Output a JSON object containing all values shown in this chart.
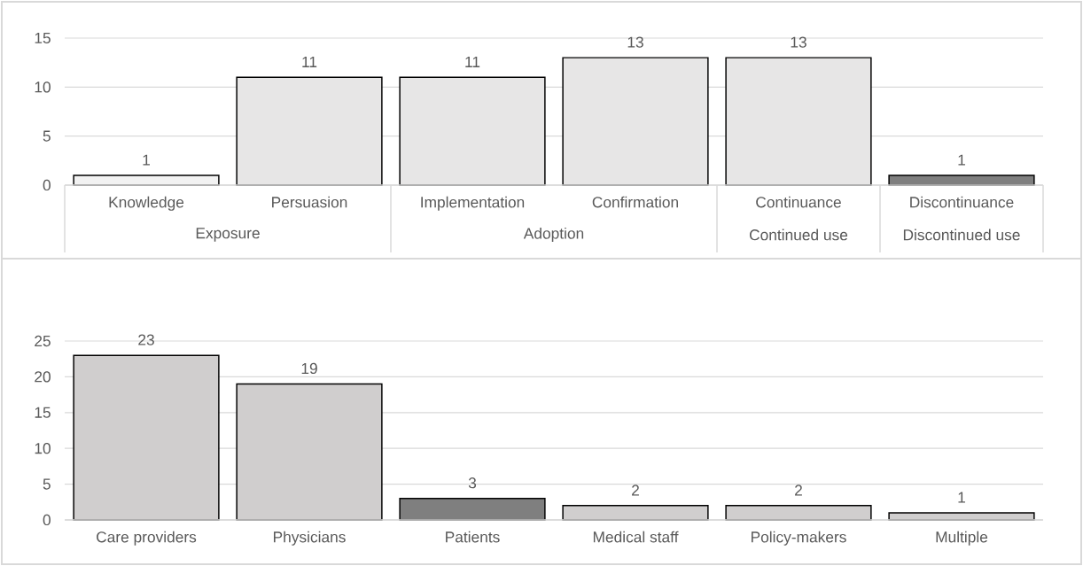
{
  "chart_data": [
    {
      "type": "bar",
      "categories": [
        "Knowledge",
        "Persuasion",
        "Implementation",
        "Confirmation",
        "Continuance",
        "Discontinuance"
      ],
      "values": [
        1,
        11,
        11,
        13,
        13,
        1
      ],
      "colors": [
        "#f2f2f2",
        "#e7e6e6",
        "#e7e6e6",
        "#e7e6e6",
        "#e7e6e6",
        "#7f7f7f"
      ],
      "ylim": [
        0,
        15
      ],
      "yticks": [
        0,
        5,
        10,
        15
      ],
      "grid": "y",
      "data_labels": true,
      "annotations": [
        "Exposure",
        "Adoption",
        "Continued use",
        "Discontinued use"
      ]
    },
    {
      "type": "bar",
      "categories": [
        "Care providers",
        "Physicians",
        "Patients",
        "Medical staff",
        "Policy-makers",
        "Multiple"
      ],
      "values": [
        23,
        19,
        3,
        2,
        2,
        1
      ],
      "colors": [
        "#d0cece",
        "#d0cece",
        "#7f7f7f",
        "#d0cece",
        "#d0cece",
        "#d0cece"
      ],
      "ylim": [
        0,
        25
      ],
      "yticks": [
        0,
        5,
        10,
        15,
        20,
        25
      ],
      "grid": "y",
      "data_labels": true
    }
  ]
}
